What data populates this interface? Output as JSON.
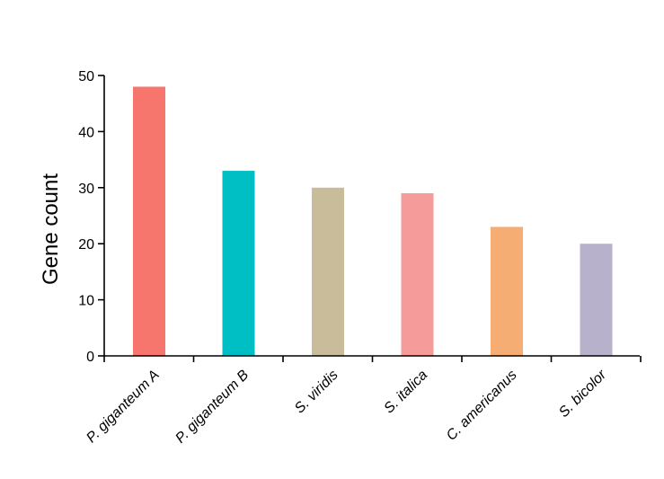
{
  "chart_data": {
    "type": "bar",
    "title": "",
    "xlabel": "",
    "ylabel": "Gene count",
    "ylim": [
      0,
      50
    ],
    "yticks": [
      0,
      10,
      20,
      30,
      40,
      50
    ],
    "grid": false,
    "categories": [
      "P. giganteum A",
      "P. giganteum B",
      "S. viridis",
      "S. italica",
      "C. americanus",
      "S. bicolor"
    ],
    "values": [
      48,
      33,
      30,
      29,
      23,
      20
    ],
    "colors": [
      "#F6766E",
      "#00BFC4",
      "#C8BC9A",
      "#F59B9A",
      "#F5AD73",
      "#B8B1CB"
    ]
  }
}
